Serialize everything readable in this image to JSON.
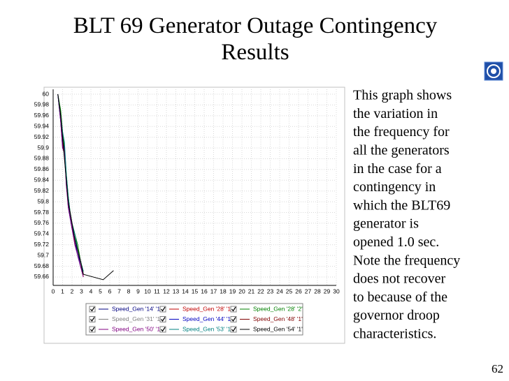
{
  "slide": {
    "title": "BLT 69 Generator Outage Contingency Results",
    "body_lines": [
      "This graph shows",
      "the variation in",
      "the frequency for",
      "all the generators",
      "in the case for a",
      "contingency in",
      "which the BLT69",
      "generator is",
      "opened 1.0 sec.",
      "Note the frequency",
      "does not recover",
      "to because of the",
      "governor droop",
      "characteristics."
    ],
    "page_number": 62
  },
  "chart_data": {
    "type": "line",
    "x": [
      0.5,
      0.8,
      1.0,
      1.2,
      1.4,
      1.6,
      1.8,
      2.0,
      2.3,
      2.6,
      2.9,
      3.2,
      5.3,
      6.4
    ],
    "series": [
      {
        "name": "Speed_Gen '14' '1'",
        "color": "#000080",
        "values": [
          60,
          59.95,
          59.9,
          59.9,
          59.83,
          59.8,
          59.77,
          59.75,
          59.73,
          59.71,
          59.68,
          59.665,
          null,
          null
        ]
      },
      {
        "name": "Speed_Gen '28' '1'",
        "color": "#c00000",
        "values": [
          60,
          59.96,
          59.91,
          59.89,
          59.84,
          59.8,
          59.78,
          59.76,
          59.72,
          59.71,
          59.69,
          59.66,
          null,
          null
        ]
      },
      {
        "name": "Speed_Gen '28' '2'",
        "color": "#008000",
        "values": [
          60,
          59.97,
          59.93,
          59.9,
          59.85,
          59.81,
          59.78,
          59.76,
          59.74,
          59.72,
          59.69,
          59.67,
          null,
          null
        ]
      },
      {
        "name": "Speed_Gen '31' '1'",
        "color": "#808080",
        "values": [
          60,
          59.96,
          59.92,
          59.88,
          59.84,
          59.8,
          59.78,
          59.76,
          59.73,
          59.71,
          59.69,
          59.665,
          null,
          null
        ]
      },
      {
        "name": "Speed_Gen '44' '1'",
        "color": "#0000c0",
        "values": [
          60,
          59.95,
          59.91,
          59.9,
          59.84,
          59.79,
          59.77,
          59.75,
          59.73,
          59.7,
          59.68,
          59.665,
          null,
          null
        ]
      },
      {
        "name": "Speed_Gen '48' '1'",
        "color": "#800000",
        "values": [
          60,
          59.96,
          59.92,
          59.89,
          59.84,
          59.8,
          59.78,
          59.76,
          59.73,
          59.71,
          59.69,
          59.665,
          null,
          null
        ]
      },
      {
        "name": "Speed_Gen '50' '1'",
        "color": "#800080",
        "values": [
          60,
          59.95,
          59.9,
          59.89,
          59.83,
          59.79,
          59.77,
          59.75,
          59.72,
          59.7,
          59.68,
          59.66,
          null,
          null
        ]
      },
      {
        "name": "Speed_Gen '53' '1'",
        "color": "#008080",
        "values": [
          60,
          59.96,
          59.93,
          59.91,
          59.85,
          59.81,
          59.78,
          59.76,
          59.74,
          59.71,
          59.69,
          59.67,
          null,
          null
        ]
      },
      {
        "name": "Speed_Gen '54' '1'",
        "color": "#000000",
        "values": [
          60,
          59.96,
          59.92,
          59.88,
          59.84,
          59.8,
          59.78,
          59.76,
          59.73,
          59.71,
          59.69,
          59.665,
          59.655,
          59.672
        ]
      }
    ],
    "xlim": [
      0,
      30
    ],
    "xticks": [
      0,
      1,
      2,
      3,
      4,
      5,
      6,
      7,
      8,
      9,
      10,
      11,
      12,
      13,
      14,
      15,
      16,
      17,
      18,
      19,
      20,
      21,
      22,
      23,
      24,
      25,
      26,
      27,
      28,
      29,
      30
    ],
    "ylim": [
      59.65,
      60
    ],
    "yticks": [
      59.66,
      59.68,
      59.7,
      59.72,
      59.74,
      59.76,
      59.78,
      59.8,
      59.82,
      59.84,
      59.86,
      59.88,
      59.9,
      59.92,
      59.94,
      59.96,
      59.98,
      60
    ],
    "grid": true
  }
}
